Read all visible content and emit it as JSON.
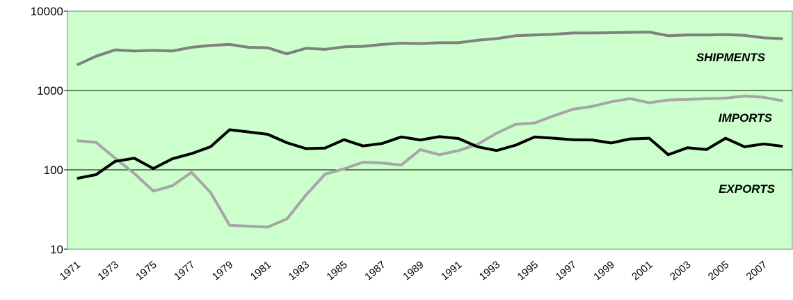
{
  "chart_data": {
    "type": "line",
    "categories": [
      "1971",
      null,
      "1973",
      null,
      "1975",
      null,
      "1977",
      null,
      "1979",
      null,
      "1981",
      null,
      "1983",
      null,
      "1985",
      null,
      "1987",
      null,
      "1989",
      null,
      "1991",
      null,
      "1993",
      null,
      "1995",
      null,
      "1997",
      null,
      "1999",
      null,
      "2001",
      null,
      "2003",
      null,
      "2005",
      null,
      "2007",
      null
    ],
    "series": [
      {
        "name": "SHIPMENTS",
        "color": "#808080",
        "values": [
          2100,
          2700,
          3250,
          3150,
          3200,
          3150,
          3500,
          3700,
          3800,
          3500,
          3450,
          2900,
          3400,
          3300,
          3550,
          3600,
          3800,
          3950,
          3900,
          4000,
          4000,
          4300,
          4500,
          4900,
          5000,
          5100,
          5300,
          5300,
          5350,
          5400,
          5450,
          4900,
          5000,
          5000,
          5050,
          4950,
          4600,
          4500
        ]
      },
      {
        "name": "IMPORTS",
        "color": "#a6a6a6",
        "values": [
          233,
          222,
          140,
          90,
          54,
          63,
          93,
          52,
          20,
          19.5,
          19,
          24,
          48,
          88,
          103,
          125,
          122,
          115,
          180,
          155,
          175,
          210,
          290,
          375,
          390,
          480,
          580,
          630,
          720,
          790,
          700,
          760,
          770,
          790,
          800,
          850,
          820,
          740
        ]
      },
      {
        "name": "EXPORTS",
        "color": "#000000",
        "values": [
          78,
          87,
          128,
          140,
          104,
          138,
          160,
          195,
          320,
          300,
          280,
          220,
          185,
          188,
          240,
          200,
          215,
          260,
          238,
          262,
          248,
          195,
          175,
          205,
          260,
          250,
          240,
          238,
          218,
          245,
          250,
          155,
          190,
          180,
          250,
          195,
          212,
          198
        ]
      }
    ],
    "ylim": [
      10,
      10000
    ],
    "yticks": [
      10,
      100,
      1000,
      10000
    ],
    "log_y": true,
    "grid": true,
    "plot_background": "#ccffcc"
  }
}
